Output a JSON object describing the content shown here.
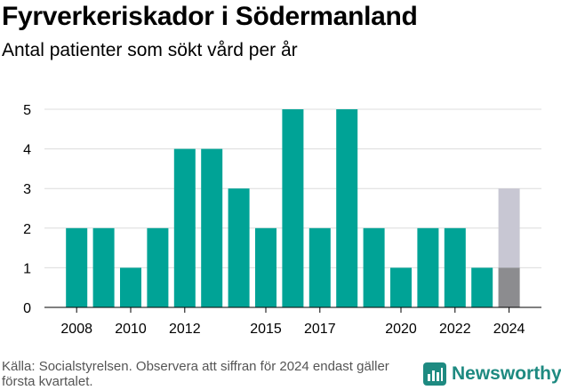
{
  "header": {
    "title": "Fyrverkeriskador i Södermanland",
    "subtitle": "Antal patienter som sökt vård per år"
  },
  "footer": {
    "source": "Källa: Socialstyrelsen. Observera att siffran för 2024 endast gäller första kvartalet.",
    "brand": "Newsworthy"
  },
  "colors": {
    "bar": "#00a396",
    "projected_bar": "#c8c7d3",
    "partial_bar": "#8c8c8f",
    "grid": "#dcdcdc",
    "brand": "#1e8a81"
  },
  "chart_data": {
    "type": "bar",
    "title": "Fyrverkeriskador i Södermanland",
    "subtitle": "Antal patienter som sökt vård per år",
    "xlabel": "",
    "ylabel": "",
    "categories": [
      "2008",
      "2009",
      "2010",
      "2011",
      "2012",
      "2013",
      "2014",
      "2015",
      "2016",
      "2017",
      "2018",
      "2019",
      "2020",
      "2021",
      "2022",
      "2023",
      "2024"
    ],
    "values": [
      2,
      2,
      1,
      2,
      4,
      4,
      3,
      2,
      5,
      2,
      5,
      2,
      1,
      2,
      2,
      1,
      1
    ],
    "projected_2024": 3,
    "x_tick_labels": [
      "2008",
      "2010",
      "2012",
      "2015",
      "2017",
      "2020",
      "2022",
      "2024"
    ],
    "y_ticks": [
      0,
      1,
      2,
      3,
      4,
      5
    ],
    "ylim": [
      0,
      5
    ],
    "grid": true,
    "legend": "none"
  }
}
